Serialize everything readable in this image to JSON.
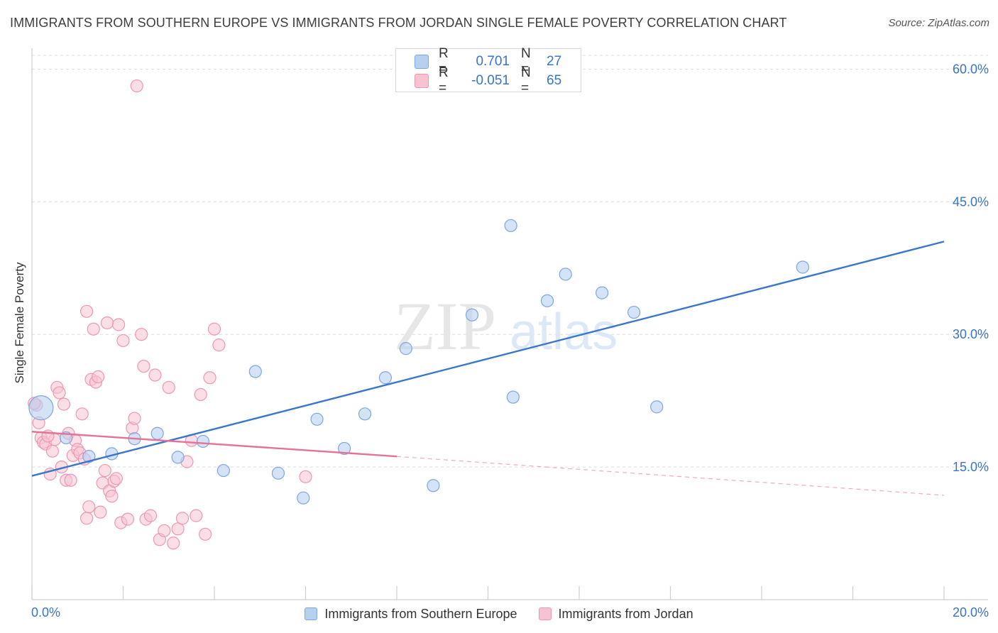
{
  "header": {
    "title": "IMMIGRANTS FROM SOUTHERN EUROPE VS IMMIGRANTS FROM JORDAN SINGLE FEMALE POVERTY CORRELATION CHART",
    "source": "Source: ZipAtlas.com"
  },
  "watermark": {
    "zip": "ZIP",
    "atlas": "atlas"
  },
  "stats_box": {
    "rows": [
      {
        "r_label": "R =",
        "r_value": "0.701",
        "n_label": "N =",
        "n_value": "27",
        "color": "#a9c7ef"
      },
      {
        "r_label": "R =",
        "r_value": "-0.051",
        "n_label": "N =",
        "n_value": "65",
        "color": "#f6b6c8"
      }
    ]
  },
  "legend": {
    "series1": "Immigrants from Southern Europe",
    "series2": "Immigrants from Jordan"
  },
  "colors": {
    "blue_fill": "#b8d0f0",
    "blue_stroke": "#7ea6df",
    "blue_line": "#3a76cc",
    "pink_fill": "#f7c2d2",
    "pink_stroke": "#ee97b2",
    "pink_line": "#e4739a",
    "tick_label": "#3a74c4",
    "grid": "#dcdcdc"
  },
  "chart_data": {
    "type": "scatter",
    "ylabel": "Single Female Poverty",
    "xlabel": "",
    "xlim": [
      0,
      20
    ],
    "ylim": [
      0,
      63
    ],
    "x_tick_labels": [
      "0.0%",
      "20.0%"
    ],
    "y_ticks": [
      15,
      30,
      45,
      60
    ],
    "y_tick_labels": [
      "15.0%",
      "30.0%",
      "45.0%",
      "60.0%"
    ],
    "grid": true,
    "series": [
      {
        "name": "Immigrants from Southern Europe",
        "points": [
          [
            0.2,
            21.7
          ],
          [
            0.75,
            18.3
          ],
          [
            1.25,
            16.2
          ],
          [
            1.75,
            16.5
          ],
          [
            2.25,
            18.2
          ],
          [
            2.75,
            18.8
          ],
          [
            3.2,
            16.1
          ],
          [
            3.75,
            17.9
          ],
          [
            4.2,
            14.6
          ],
          [
            4.9,
            25.8
          ],
          [
            5.4,
            14.3
          ],
          [
            5.95,
            11.5
          ],
          [
            6.25,
            20.4
          ],
          [
            6.85,
            17.1
          ],
          [
            7.3,
            21.0
          ],
          [
            7.75,
            25.1
          ],
          [
            8.2,
            28.4
          ],
          [
            8.8,
            12.9
          ],
          [
            9.65,
            32.2
          ],
          [
            10.55,
            22.9
          ],
          [
            10.5,
            42.3
          ],
          [
            11.3,
            33.8
          ],
          [
            11.7,
            36.8
          ],
          [
            12.5,
            34.7
          ],
          [
            13.2,
            32.5
          ],
          [
            13.7,
            21.8
          ],
          [
            16.9,
            37.6
          ]
        ],
        "trend": {
          "x": [
            0,
            20
          ],
          "y": [
            14.0,
            40.5
          ]
        }
      },
      {
        "name": "Immigrants from Jordan",
        "points": [
          [
            0.1,
            22.0
          ],
          [
            0.15,
            20.0
          ],
          [
            0.2,
            18.3
          ],
          [
            0.25,
            17.8
          ],
          [
            0.3,
            17.6
          ],
          [
            0.4,
            14.2
          ],
          [
            0.45,
            16.8
          ],
          [
            0.5,
            18.1
          ],
          [
            0.55,
            24.0
          ],
          [
            0.6,
            23.4
          ],
          [
            0.65,
            15.0
          ],
          [
            0.7,
            22.1
          ],
          [
            0.75,
            13.5
          ],
          [
            0.8,
            18.8
          ],
          [
            0.85,
            13.5
          ],
          [
            0.9,
            16.3
          ],
          [
            0.95,
            18.0
          ],
          [
            1.0,
            17.0
          ],
          [
            1.05,
            16.6
          ],
          [
            1.1,
            21.0
          ],
          [
            1.15,
            15.9
          ],
          [
            1.2,
            9.2
          ],
          [
            1.25,
            10.5
          ],
          [
            1.3,
            24.9
          ],
          [
            1.35,
            30.6
          ],
          [
            1.4,
            24.6
          ],
          [
            1.45,
            25.2
          ],
          [
            1.5,
            9.9
          ],
          [
            1.55,
            13.2
          ],
          [
            1.6,
            14.6
          ],
          [
            1.65,
            31.3
          ],
          [
            1.7,
            12.3
          ],
          [
            1.75,
            11.7
          ],
          [
            1.8,
            13.4
          ],
          [
            1.85,
            13.7
          ],
          [
            1.9,
            31.1
          ],
          [
            1.95,
            8.7
          ],
          [
            2.0,
            29.3
          ],
          [
            2.1,
            9.1
          ],
          [
            2.2,
            19.4
          ],
          [
            2.25,
            20.5
          ],
          [
            2.3,
            58.1
          ],
          [
            2.4,
            30.0
          ],
          [
            2.45,
            26.4
          ],
          [
            2.5,
            9.1
          ],
          [
            2.6,
            9.5
          ],
          [
            2.7,
            25.4
          ],
          [
            2.8,
            6.8
          ],
          [
            2.9,
            7.8
          ],
          [
            3.0,
            24.0
          ],
          [
            3.1,
            6.4
          ],
          [
            3.2,
            8.0
          ],
          [
            3.3,
            9.2
          ],
          [
            3.4,
            15.6
          ],
          [
            3.5,
            18.0
          ],
          [
            3.6,
            9.5
          ],
          [
            3.7,
            23.2
          ],
          [
            3.8,
            7.4
          ],
          [
            3.9,
            25.1
          ],
          [
            4.0,
            30.6
          ],
          [
            4.1,
            28.8
          ],
          [
            1.2,
            32.6
          ],
          [
            0.05,
            22.2
          ],
          [
            6.0,
            13.9
          ],
          [
            0.35,
            18.5
          ]
        ],
        "trend": {
          "x": [
            0,
            8
          ],
          "y": [
            19.0,
            16.2
          ]
        },
        "trend_dashed": {
          "x": [
            8,
            20
          ],
          "y": [
            16.2,
            11.8
          ]
        }
      }
    ]
  }
}
